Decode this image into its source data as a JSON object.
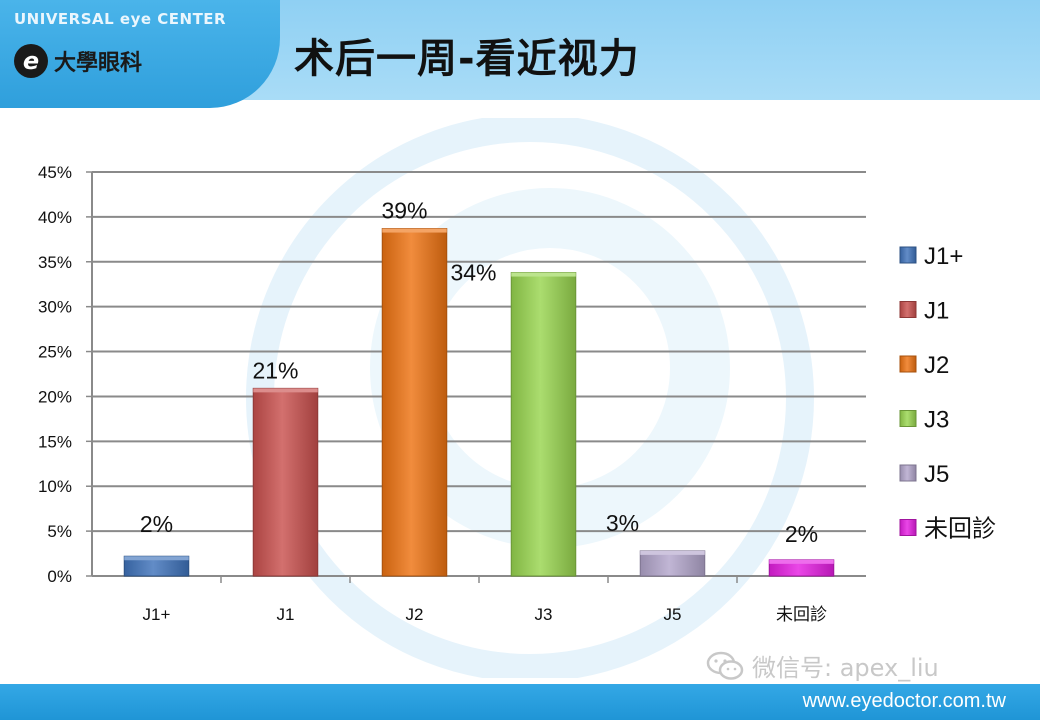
{
  "header": {
    "center_name": "UNIVERSAL eye CENTER",
    "logo_mark": "e",
    "logo_text": "大學眼科",
    "title": "术后一周-看近视力"
  },
  "watermark": {
    "wechat_text": "微信号: apex_liu",
    "wechat_icon": "wechat-icon"
  },
  "footer": {
    "url": "www.eyedoctor.com.tw"
  },
  "colors": {
    "header_bg": "#a9dcf7",
    "header_tab": "#2f9fdc",
    "footer_bg": "#1f95d6"
  },
  "chart_data": {
    "type": "bar",
    "title": "",
    "xlabel": "",
    "ylabel": "",
    "ylim": [
      0,
      45
    ],
    "yticks": [
      "0%",
      "5%",
      "10%",
      "15%",
      "20%",
      "25%",
      "30%",
      "35%",
      "40%",
      "45%"
    ],
    "ytick_values": [
      0,
      5,
      10,
      15,
      20,
      25,
      30,
      35,
      40,
      45
    ],
    "grid": true,
    "legend_position": "right",
    "categories": [
      "J1+",
      "J1",
      "J2",
      "J3",
      "J5",
      "未回診"
    ],
    "values": [
      2,
      21,
      39,
      34,
      3,
      2
    ],
    "bar_heights": [
      2.2,
      20.9,
      38.7,
      33.8,
      2.8,
      1.8
    ],
    "value_labels": [
      "2%",
      "21%",
      "39%",
      "34%",
      "3%",
      "2%"
    ],
    "colors": [
      "#3f73bb",
      "#c9504e",
      "#ee7312",
      "#98d54f",
      "#b3a6cc",
      "#e51ee2"
    ]
  }
}
